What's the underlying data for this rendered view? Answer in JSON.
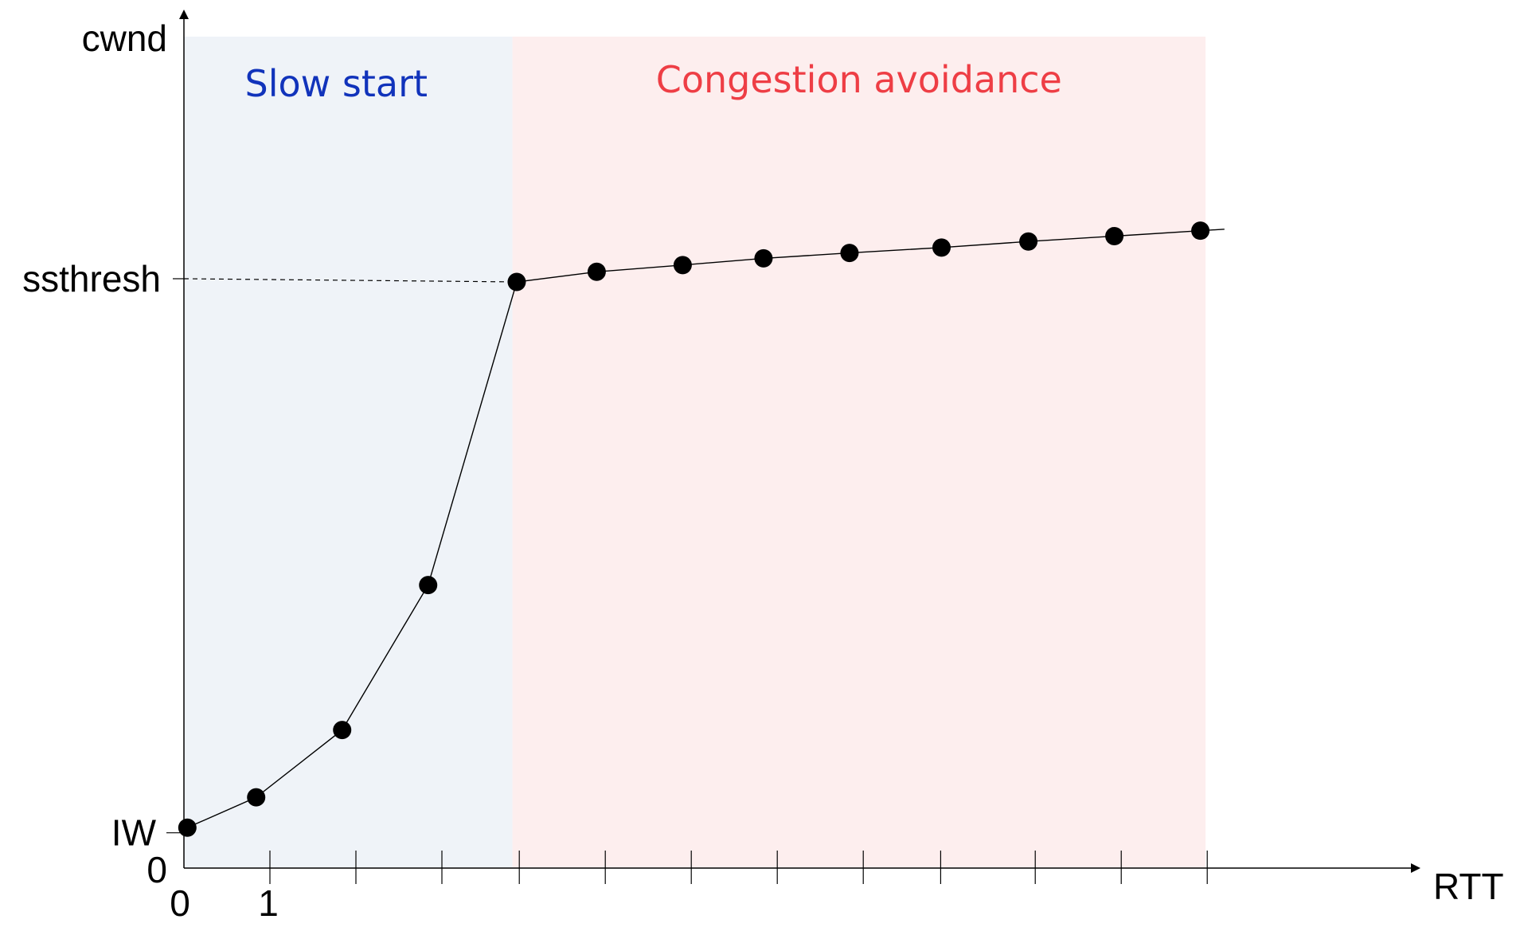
{
  "chart_data": {
    "type": "line",
    "ylabel": "cwnd",
    "xlabel": "RTT",
    "x_tick_labels": [
      "0",
      "1"
    ],
    "y_tick_labels": {
      "zero": "0",
      "iw": "IW",
      "ssthresh": "ssthresh"
    },
    "regions": [
      {
        "label": "Slow start",
        "color": "#1133bb",
        "fill": "#eff3f8",
        "x_start": 0,
        "x_end": 3.82
      },
      {
        "label": "Congestion avoidance",
        "color": "#ee3e45",
        "fill": "#fdeeee",
        "x_start": 3.82,
        "x_end": 11.88
      }
    ],
    "x_ticks": [
      1,
      2,
      3,
      3.9,
      4.9,
      5.9,
      6.9,
      7.9,
      8.8,
      9.9,
      10.9,
      11.9
    ],
    "series": [
      {
        "x": [
          0.04,
          0.84,
          1.84,
          2.84,
          3.87,
          4.8,
          5.8,
          6.74,
          7.74,
          8.81,
          9.82,
          10.82,
          11.82
        ],
        "y": [
          1.2,
          2.1,
          4.1,
          8.4,
          17.4,
          17.7,
          17.9,
          18.1,
          18.26,
          18.42,
          18.6,
          18.76,
          18.92
        ],
        "extend_to_x": 12.1
      }
    ],
    "ssthresh": 17.4,
    "iw": 1.0,
    "xlim": [
      0,
      14.5
    ],
    "ylim": [
      0,
      23
    ],
    "grid": false,
    "legend": "none"
  }
}
